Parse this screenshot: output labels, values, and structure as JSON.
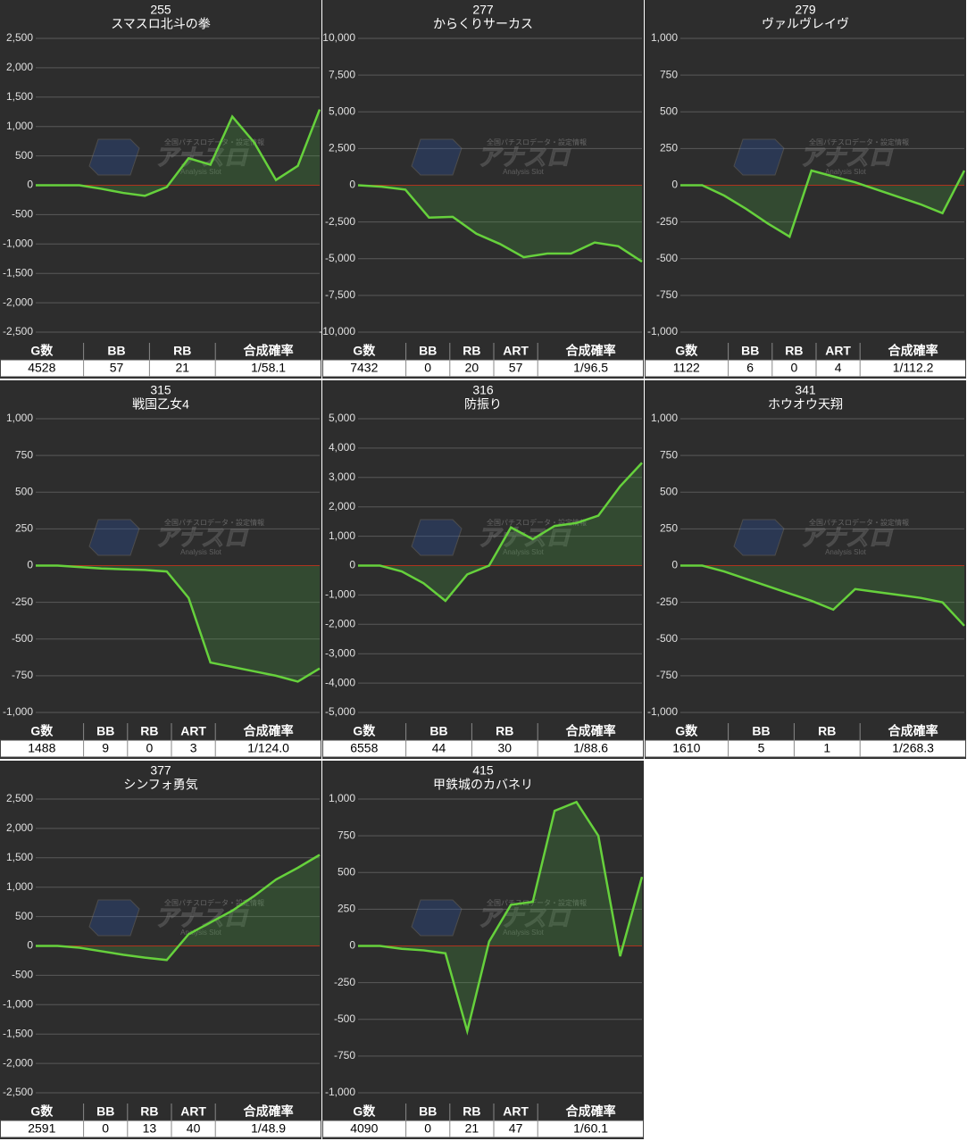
{
  "watermark": {
    "tagline": "全国パチスロデータ・設定情報",
    "name": "アナスロ",
    "sub": "Analysis Slot"
  },
  "chart_data": [
    {
      "type": "line",
      "title": "255",
      "subtitle": "スマスロ北斗の拳",
      "color": "#66d13c",
      "values": [
        0,
        0,
        0,
        -60,
        -130,
        -180,
        -30,
        460,
        350,
        1170,
        730,
        90,
        330,
        1290
      ],
      "ylim": [
        -2500,
        2500
      ],
      "yticks": [
        {
          "value": -2500,
          "label": "-2,500"
        },
        {
          "value": -2000,
          "label": "-2,000"
        },
        {
          "value": -1500,
          "label": "-1,500"
        },
        {
          "value": -1000,
          "label": "-1,000"
        },
        -500,
        0,
        500,
        {
          "value": 1000,
          "label": "1,000"
        },
        {
          "value": 1500,
          "label": "1,500"
        },
        {
          "value": 2000,
          "label": "2,000"
        },
        {
          "value": 2500,
          "label": "2,500"
        }
      ],
      "grid": true,
      "table": {
        "headers": [
          "G数",
          "BB",
          "RB",
          "合成確率"
        ],
        "rows": [
          [
            4528,
            57,
            21,
            "1/58.1"
          ]
        ]
      }
    },
    {
      "type": "line",
      "title": "277",
      "subtitle": "からくりサーカス",
      "color": "#66d13c",
      "values": [
        0,
        -100,
        -300,
        -2200,
        -2150,
        -3300,
        -4000,
        -4900,
        -4650,
        -4650,
        -3900,
        -4150,
        -5200
      ],
      "ylim": [
        -10000,
        10000
      ],
      "yticks": [
        {
          "value": -10000,
          "label": "-10,000"
        },
        {
          "value": -7500,
          "label": "-7,500"
        },
        {
          "value": -5000,
          "label": "-5,000"
        },
        {
          "value": -2500,
          "label": "-2,500"
        },
        0,
        {
          "value": 2500,
          "label": "2,500"
        },
        {
          "value": 5000,
          "label": "5,000"
        },
        {
          "value": 7500,
          "label": "7,500"
        },
        {
          "value": 10000,
          "label": "10,000"
        }
      ],
      "grid": true,
      "table": {
        "headers": [
          "G数",
          "BB",
          "RB",
          "ART",
          "合成確率"
        ],
        "rows": [
          [
            7432,
            0,
            20,
            57,
            "1/96.5"
          ]
        ]
      }
    },
    {
      "type": "line",
      "title": "279",
      "subtitle": "ヴァルヴレイヴ",
      "color": "#66d13c",
      "values": [
        0,
        0,
        -70,
        -160,
        -260,
        -350,
        100,
        60,
        20,
        -30,
        -80,
        -130,
        -190,
        100
      ],
      "ylim": [
        -1000,
        1000
      ],
      "yticks": [
        {
          "value": -1000,
          "label": "-1,000"
        },
        -750,
        -500,
        -250,
        0,
        250,
        500,
        750,
        {
          "value": 1000,
          "label": "1,000"
        }
      ],
      "grid": true,
      "table": {
        "headers": [
          "G数",
          "BB",
          "RB",
          "ART",
          "合成確率"
        ],
        "rows": [
          [
            1122,
            6,
            0,
            4,
            "1/112.2"
          ]
        ]
      }
    },
    {
      "type": "line",
      "title": "315",
      "subtitle": "戦国乙女4",
      "color": "#66d13c",
      "values": [
        0,
        0,
        -10,
        -20,
        -25,
        -30,
        -40,
        -220,
        -660,
        -690,
        -720,
        -750,
        -790,
        -700
      ],
      "ylim": [
        -1000,
        1000
      ],
      "yticks": [
        {
          "value": -1000,
          "label": "-1,000"
        },
        -750,
        -500,
        -250,
        0,
        250,
        500,
        750,
        {
          "value": 1000,
          "label": "1,000"
        }
      ],
      "grid": true,
      "table": {
        "headers": [
          "G数",
          "BB",
          "RB",
          "ART",
          "合成確率"
        ],
        "rows": [
          [
            1488,
            9,
            0,
            3,
            "1/124.0"
          ]
        ]
      }
    },
    {
      "type": "line",
      "title": "316",
      "subtitle": "防振り",
      "color": "#66d13c",
      "values": [
        0,
        0,
        -200,
        -600,
        -1200,
        -300,
        0,
        1300,
        900,
        1350,
        1450,
        1700,
        2700,
        3500
      ],
      "ylim": [
        -5000,
        5000
      ],
      "yticks": [
        {
          "value": -5000,
          "label": "-5,000"
        },
        {
          "value": -4000,
          "label": "-4,000"
        },
        {
          "value": -3000,
          "label": "-3,000"
        },
        {
          "value": -2000,
          "label": "-2,000"
        },
        {
          "value": -1000,
          "label": "-1,000"
        },
        0,
        {
          "value": 1000,
          "label": "1,000"
        },
        {
          "value": 2000,
          "label": "2,000"
        },
        {
          "value": 3000,
          "label": "3,000"
        },
        {
          "value": 4000,
          "label": "4,000"
        },
        {
          "value": 5000,
          "label": "5,000"
        }
      ],
      "grid": true,
      "table": {
        "headers": [
          "G数",
          "BB",
          "RB",
          "合成確率"
        ],
        "rows": [
          [
            6558,
            44,
            30,
            "1/88.6"
          ]
        ]
      }
    },
    {
      "type": "line",
      "title": "341",
      "subtitle": "ホウオウ天翔",
      "color": "#66d13c",
      "values": [
        0,
        0,
        -40,
        -90,
        -140,
        -190,
        -240,
        -300,
        -160,
        -180,
        -200,
        -220,
        -250,
        -410
      ],
      "ylim": [
        -1000,
        1000
      ],
      "yticks": [
        {
          "value": -1000,
          "label": "-1,000"
        },
        -750,
        -500,
        -250,
        0,
        250,
        500,
        750,
        {
          "value": 1000,
          "label": "1,000"
        }
      ],
      "grid": true,
      "table": {
        "headers": [
          "G数",
          "BB",
          "RB",
          "合成確率"
        ],
        "rows": [
          [
            1610,
            5,
            1,
            "1/268.3"
          ]
        ]
      }
    },
    {
      "type": "line",
      "title": "377",
      "subtitle": "シンフォ勇気",
      "color": "#66d13c",
      "values": [
        0,
        0,
        -30,
        -90,
        -150,
        -200,
        -240,
        200,
        400,
        600,
        850,
        1130,
        1330,
        1550
      ],
      "ylim": [
        -2500,
        2500
      ],
      "yticks": [
        {
          "value": -2500,
          "label": "-2,500"
        },
        {
          "value": -2000,
          "label": "-2,000"
        },
        {
          "value": -1500,
          "label": "-1,500"
        },
        {
          "value": -1000,
          "label": "-1,000"
        },
        -500,
        0,
        500,
        {
          "value": 1000,
          "label": "1,000"
        },
        {
          "value": 1500,
          "label": "1,500"
        },
        {
          "value": 2000,
          "label": "2,000"
        },
        {
          "value": 2500,
          "label": "2,500"
        }
      ],
      "grid": true,
      "table": {
        "headers": [
          "G数",
          "BB",
          "RB",
          "ART",
          "合成確率"
        ],
        "rows": [
          [
            2591,
            0,
            13,
            40,
            "1/48.9"
          ]
        ]
      }
    },
    {
      "type": "line",
      "title": "415",
      "subtitle": "甲鉄城のカバネリ",
      "color": "#66d13c",
      "values": [
        0,
        0,
        -20,
        -30,
        -50,
        -580,
        30,
        280,
        300,
        920,
        980,
        750,
        -70,
        470
      ],
      "ylim": [
        -1000,
        1000
      ],
      "yticks": [
        {
          "value": -1000,
          "label": "-1,000"
        },
        -750,
        -500,
        -250,
        0,
        250,
        500,
        750,
        {
          "value": 1000,
          "label": "1,000"
        }
      ],
      "grid": true,
      "table": {
        "headers": [
          "G数",
          "BB",
          "RB",
          "ART",
          "合成確率"
        ],
        "rows": [
          [
            4090,
            0,
            21,
            47,
            "1/60.1"
          ]
        ]
      }
    }
  ]
}
